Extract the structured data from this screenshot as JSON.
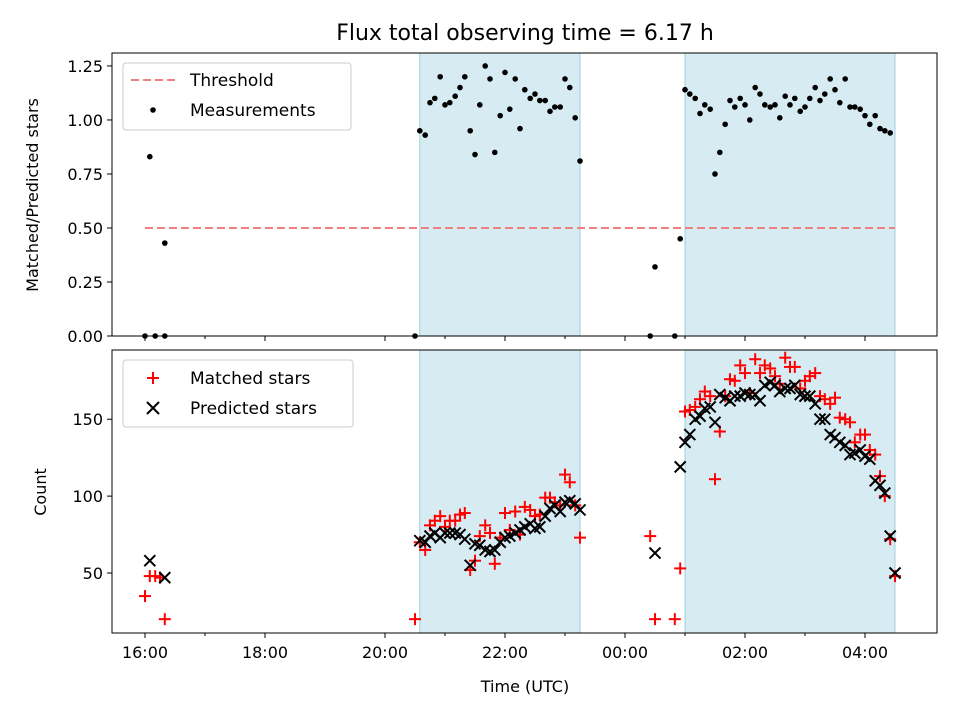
{
  "chart_data": {
    "title": "Flux total observing time = 6.17 h",
    "xlabel": "Time (UTC)",
    "x_unit": "hours (UTC)",
    "x_ticks": [
      {
        "value": 16,
        "label": "16:00"
      },
      {
        "value": 18,
        "label": "18:00"
      },
      {
        "value": 20,
        "label": "20:00"
      },
      {
        "value": 22,
        "label": "22:00"
      },
      {
        "value": 24,
        "label": "00:00"
      },
      {
        "value": 26,
        "label": "02:00"
      },
      {
        "value": 28,
        "label": "04:00"
      }
    ],
    "x_minor_ticks": [
      17,
      21,
      23,
      25,
      27
    ],
    "xlim": [
      15.45,
      29.2
    ],
    "shaded_regions": [
      {
        "start": 20.58,
        "end": 23.25
      },
      {
        "start": 25.0,
        "end": 28.5
      }
    ],
    "top": {
      "type": "scatter",
      "ylabel": "Matched/Predicted stars",
      "ylim": [
        0,
        1.31
      ],
      "y_ticks": [
        {
          "value": 0.0,
          "label": "0.00"
        },
        {
          "value": 0.25,
          "label": "0.25"
        },
        {
          "value": 0.5,
          "label": "0.50"
        },
        {
          "value": 0.75,
          "label": "0.75"
        },
        {
          "value": 1.0,
          "label": "1.00"
        },
        {
          "value": 1.25,
          "label": "1.25"
        }
      ],
      "threshold": {
        "name": "Threshold",
        "value": 0.5,
        "x_start": 16.0,
        "x_end": 28.5,
        "color": "#f08080"
      },
      "legend": [
        "Threshold",
        "Measurements"
      ],
      "series": [
        {
          "name": "Measurements",
          "color": "#000000",
          "points": [
            [
              16.0,
              0.0
            ],
            [
              16.08,
              0.83
            ],
            [
              16.17,
              0.0
            ],
            [
              16.33,
              0.43
            ],
            [
              16.33,
              0.0
            ],
            [
              20.5,
              0.0
            ],
            [
              20.58,
              0.95
            ],
            [
              20.67,
              0.93
            ],
            [
              20.75,
              1.08
            ],
            [
              20.83,
              1.1
            ],
            [
              20.92,
              1.2
            ],
            [
              21.0,
              1.07
            ],
            [
              21.08,
              1.08
            ],
            [
              21.17,
              1.11
            ],
            [
              21.25,
              1.15
            ],
            [
              21.33,
              1.2
            ],
            [
              21.42,
              0.95
            ],
            [
              21.5,
              0.84
            ],
            [
              21.58,
              1.07
            ],
            [
              21.67,
              1.25
            ],
            [
              21.75,
              1.19
            ],
            [
              21.83,
              0.85
            ],
            [
              21.92,
              1.02
            ],
            [
              22.0,
              1.22
            ],
            [
              22.08,
              1.05
            ],
            [
              22.17,
              1.19
            ],
            [
              22.25,
              0.96
            ],
            [
              22.33,
              1.14
            ],
            [
              22.42,
              1.1
            ],
            [
              22.5,
              1.12
            ],
            [
              22.58,
              1.09
            ],
            [
              22.67,
              1.09
            ],
            [
              22.75,
              1.04
            ],
            [
              22.83,
              1.06
            ],
            [
              22.92,
              1.06
            ],
            [
              23.0,
              1.19
            ],
            [
              23.08,
              1.15
            ],
            [
              23.17,
              1.01
            ],
            [
              23.25,
              0.81
            ],
            [
              24.42,
              0.0
            ],
            [
              24.5,
              0.32
            ],
            [
              24.83,
              0.0
            ],
            [
              24.92,
              0.45
            ],
            [
              25.0,
              1.14
            ],
            [
              25.08,
              1.12
            ],
            [
              25.17,
              1.1
            ],
            [
              25.25,
              1.03
            ],
            [
              25.33,
              1.07
            ],
            [
              25.42,
              1.05
            ],
            [
              25.5,
              0.75
            ],
            [
              25.58,
              0.85
            ],
            [
              25.67,
              0.98
            ],
            [
              25.75,
              1.09
            ],
            [
              25.83,
              1.06
            ],
            [
              25.92,
              1.1
            ],
            [
              26.0,
              1.07
            ],
            [
              26.08,
              1.0
            ],
            [
              26.17,
              1.15
            ],
            [
              26.25,
              1.12
            ],
            [
              26.33,
              1.07
            ],
            [
              26.42,
              1.06
            ],
            [
              26.5,
              1.07
            ],
            [
              26.58,
              1.01
            ],
            [
              26.67,
              1.11
            ],
            [
              26.75,
              1.07
            ],
            [
              26.83,
              1.1
            ],
            [
              26.92,
              1.04
            ],
            [
              27.0,
              1.06
            ],
            [
              27.08,
              1.1
            ],
            [
              27.17,
              1.15
            ],
            [
              27.25,
              1.09
            ],
            [
              27.33,
              1.12
            ],
            [
              27.42,
              1.19
            ],
            [
              27.5,
              1.14
            ],
            [
              27.58,
              1.08
            ],
            [
              27.67,
              1.19
            ],
            [
              27.75,
              1.06
            ],
            [
              27.83,
              1.06
            ],
            [
              27.92,
              1.05
            ],
            [
              28.0,
              1.02
            ],
            [
              28.08,
              0.98
            ],
            [
              28.17,
              1.02
            ],
            [
              28.25,
              0.96
            ],
            [
              28.33,
              0.95
            ],
            [
              28.42,
              0.94
            ]
          ]
        }
      ]
    },
    "bottom": {
      "type": "scatter",
      "ylabel": "Count",
      "ylim": [
        11,
        195
      ],
      "y_ticks": [
        {
          "value": 50,
          "label": "50"
        },
        {
          "value": 100,
          "label": "100"
        },
        {
          "value": 150,
          "label": "150"
        }
      ],
      "legend": [
        "Matched stars",
        "Predicted stars"
      ],
      "series": [
        {
          "name": "Matched stars",
          "marker": "plus",
          "color": "#ff0000",
          "points": [
            [
              16.0,
              35
            ],
            [
              16.08,
              48
            ],
            [
              16.17,
              48
            ],
            [
              16.25,
              47
            ],
            [
              16.33,
              20
            ],
            [
              20.5,
              20
            ],
            [
              20.58,
              70
            ],
            [
              20.67,
              65
            ],
            [
              20.75,
              81
            ],
            [
              20.83,
              84
            ],
            [
              20.92,
              87
            ],
            [
              21.0,
              80
            ],
            [
              21.08,
              84
            ],
            [
              21.17,
              84
            ],
            [
              21.25,
              88
            ],
            [
              21.33,
              89
            ],
            [
              21.42,
              52
            ],
            [
              21.5,
              58
            ],
            [
              21.58,
              74
            ],
            [
              21.67,
              81
            ],
            [
              21.75,
              76
            ],
            [
              21.83,
              56
            ],
            [
              21.92,
              73
            ],
            [
              22.0,
              89
            ],
            [
              22.08,
              78
            ],
            [
              22.17,
              90
            ],
            [
              22.25,
              75
            ],
            [
              22.33,
              93
            ],
            [
              22.42,
              91
            ],
            [
              22.5,
              87
            ],
            [
              22.58,
              88
            ],
            [
              22.67,
              99
            ],
            [
              22.75,
              99
            ],
            [
              22.83,
              96
            ],
            [
              22.92,
              94
            ],
            [
              23.0,
              114
            ],
            [
              23.08,
              109
            ],
            [
              23.17,
              94
            ],
            [
              23.25,
              73
            ],
            [
              24.42,
              74
            ],
            [
              24.5,
              20
            ],
            [
              24.83,
              20
            ],
            [
              24.92,
              53
            ],
            [
              25.0,
              155
            ],
            [
              25.08,
              156
            ],
            [
              25.17,
              158
            ],
            [
              25.25,
              163
            ],
            [
              25.33,
              168
            ],
            [
              25.42,
              165
            ],
            [
              25.5,
              111
            ],
            [
              25.58,
              142
            ],
            [
              25.67,
              165
            ],
            [
              25.75,
              176
            ],
            [
              25.83,
              175
            ],
            [
              25.92,
              185
            ],
            [
              26.0,
              180
            ],
            [
              26.08,
              167
            ],
            [
              26.17,
              189
            ],
            [
              26.25,
              180
            ],
            [
              26.33,
              185
            ],
            [
              26.42,
              183
            ],
            [
              26.5,
              178
            ],
            [
              26.58,
              173
            ],
            [
              26.67,
              190
            ],
            [
              26.75,
              184
            ],
            [
              26.83,
              184
            ],
            [
              26.92,
              170
            ],
            [
              27.0,
              175
            ],
            [
              27.08,
              178
            ],
            [
              27.17,
              180
            ],
            [
              27.25,
              165
            ],
            [
              27.33,
              163
            ],
            [
              27.42,
              160
            ],
            [
              27.5,
              164
            ],
            [
              27.58,
              151
            ],
            [
              27.67,
              150
            ],
            [
              27.75,
              148
            ],
            [
              27.83,
              135
            ],
            [
              27.92,
              140
            ],
            [
              28.0,
              140
            ],
            [
              28.08,
              130
            ],
            [
              28.17,
              127
            ],
            [
              28.25,
              113
            ],
            [
              28.33,
              100
            ],
            [
              28.42,
              72
            ],
            [
              28.5,
              48
            ]
          ]
        },
        {
          "name": "Predicted stars",
          "marker": "x",
          "color": "#000000",
          "points": [
            [
              16.08,
              58
            ],
            [
              16.33,
              47
            ],
            [
              20.58,
              71
            ],
            [
              20.67,
              70
            ],
            [
              20.75,
              74
            ],
            [
              20.83,
              76
            ],
            [
              20.92,
              73
            ],
            [
              21.0,
              76
            ],
            [
              21.08,
              76
            ],
            [
              21.17,
              76
            ],
            [
              21.25,
              75
            ],
            [
              21.33,
              72
            ],
            [
              21.42,
              55
            ],
            [
              21.5,
              69
            ],
            [
              21.58,
              68
            ],
            [
              21.67,
              65
            ],
            [
              21.75,
              64
            ],
            [
              21.83,
              65
            ],
            [
              21.92,
              70
            ],
            [
              22.0,
              73
            ],
            [
              22.08,
              74
            ],
            [
              22.17,
              76
            ],
            [
              22.25,
              78
            ],
            [
              22.33,
              80
            ],
            [
              22.42,
              82
            ],
            [
              22.5,
              79
            ],
            [
              22.58,
              80
            ],
            [
              22.67,
              87
            ],
            [
              22.75,
              92
            ],
            [
              22.83,
              94
            ],
            [
              22.92,
              90
            ],
            [
              23.0,
              96
            ],
            [
              23.08,
              97
            ],
            [
              23.17,
              95
            ],
            [
              23.25,
              91
            ],
            [
              24.5,
              63
            ],
            [
              24.92,
              119
            ],
            [
              25.0,
              135
            ],
            [
              25.08,
              140
            ],
            [
              25.17,
              150
            ],
            [
              25.25,
              152
            ],
            [
              25.33,
              157
            ],
            [
              25.42,
              158
            ],
            [
              25.5,
              148
            ],
            [
              25.58,
              166
            ],
            [
              25.67,
              164
            ],
            [
              25.75,
              162
            ],
            [
              25.83,
              165
            ],
            [
              25.92,
              165
            ],
            [
              26.0,
              167
            ],
            [
              26.08,
              166
            ],
            [
              26.17,
              166
            ],
            [
              26.25,
              162
            ],
            [
              26.33,
              172
            ],
            [
              26.42,
              174
            ],
            [
              26.5,
              172
            ],
            [
              26.58,
              168
            ],
            [
              26.67,
              170
            ],
            [
              26.75,
              170
            ],
            [
              26.83,
              172
            ],
            [
              26.92,
              166
            ],
            [
              27.0,
              165
            ],
            [
              27.08,
              165
            ],
            [
              27.17,
              160
            ],
            [
              27.25,
              150
            ],
            [
              27.33,
              150
            ],
            [
              27.42,
              140
            ],
            [
              27.5,
              138
            ],
            [
              27.58,
              135
            ],
            [
              27.67,
              133
            ],
            [
              27.75,
              127
            ],
            [
              27.83,
              128
            ],
            [
              27.92,
              130
            ],
            [
              28.0,
              126
            ],
            [
              28.08,
              124
            ],
            [
              28.17,
              110
            ],
            [
              28.25,
              107
            ],
            [
              28.33,
              102
            ],
            [
              28.42,
              74
            ],
            [
              28.5,
              50
            ]
          ]
        }
      ]
    }
  }
}
